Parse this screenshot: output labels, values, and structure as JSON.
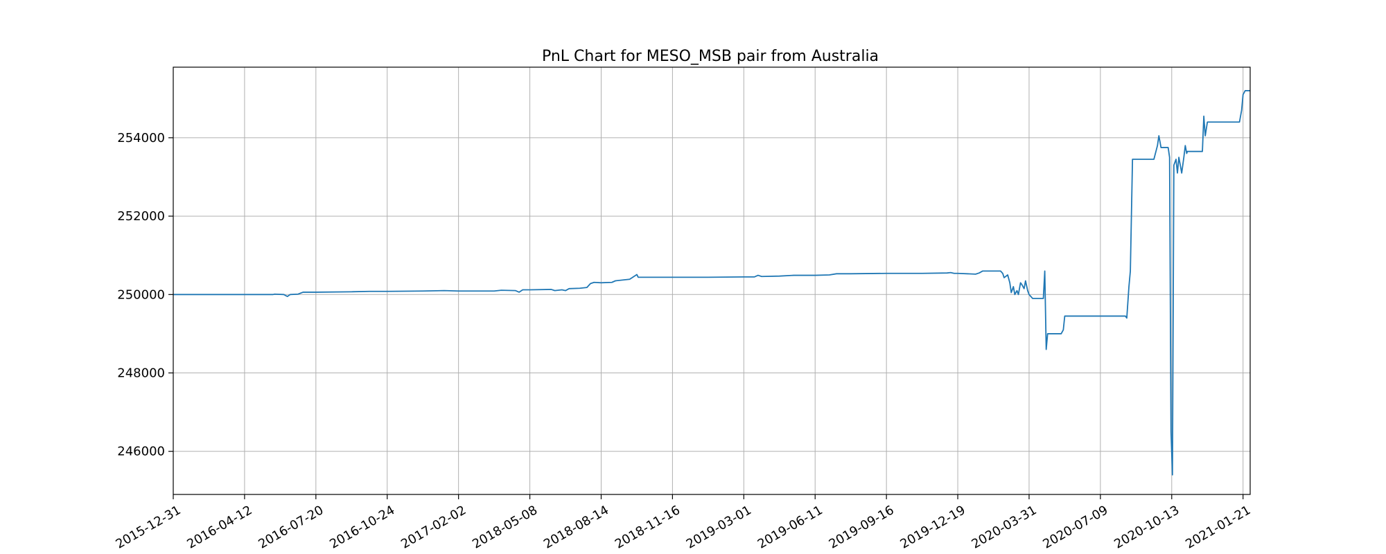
{
  "chart_data": {
    "type": "line",
    "title": "PnL Chart for MESO_MSB pair from Australia",
    "xlabel": "",
    "ylabel": "",
    "x_tick_labels": [
      "2015-12-31",
      "2016-04-12",
      "2016-07-20",
      "2016-10-24",
      "2017-02-02",
      "2018-05-08",
      "2018-08-14",
      "2018-11-16",
      "2019-03-01",
      "2019-06-11",
      "2019-09-16",
      "2019-12-19",
      "2020-03-31",
      "2020-07-09",
      "2020-10-13",
      "2021-01-21"
    ],
    "y_tick_labels": [
      "246000",
      "248000",
      "250000",
      "252000",
      "254000"
    ],
    "y_ticks": [
      246000,
      248000,
      250000,
      252000,
      254000
    ],
    "ylim": [
      244900,
      255800
    ],
    "x_range_positions": [
      0,
      15.1
    ],
    "grid": true,
    "line_color": "#1f77b4",
    "series": [
      {
        "points": [
          [
            0.0,
            250000
          ],
          [
            1.0,
            250000
          ],
          [
            1.4,
            250000
          ],
          [
            1.42,
            250010
          ],
          [
            1.55,
            250000
          ],
          [
            1.6,
            249950
          ],
          [
            1.64,
            250000
          ],
          [
            1.75,
            250010
          ],
          [
            1.82,
            250060
          ],
          [
            2.0,
            250060
          ],
          [
            2.5,
            250070
          ],
          [
            2.75,
            250080
          ],
          [
            3.0,
            250080
          ],
          [
            3.5,
            250090
          ],
          [
            3.8,
            250100
          ],
          [
            4.0,
            250090
          ],
          [
            4.5,
            250090
          ],
          [
            4.6,
            250110
          ],
          [
            4.8,
            250100
          ],
          [
            4.85,
            250060
          ],
          [
            4.9,
            250120
          ],
          [
            5.0,
            250120
          ],
          [
            5.3,
            250130
          ],
          [
            5.35,
            250100
          ],
          [
            5.45,
            250120
          ],
          [
            5.5,
            250100
          ],
          [
            5.55,
            250150
          ],
          [
            5.7,
            250160
          ],
          [
            5.8,
            250180
          ],
          [
            5.85,
            250280
          ],
          [
            5.9,
            250310
          ],
          [
            6.0,
            250300
          ],
          [
            6.15,
            250310
          ],
          [
            6.2,
            250350
          ],
          [
            6.4,
            250390
          ],
          [
            6.45,
            250450
          ],
          [
            6.5,
            250510
          ],
          [
            6.52,
            250440
          ],
          [
            7.0,
            250440
          ],
          [
            7.5,
            250440
          ],
          [
            8.0,
            250450
          ],
          [
            8.15,
            250450
          ],
          [
            8.2,
            250490
          ],
          [
            8.25,
            250460
          ],
          [
            8.5,
            250470
          ],
          [
            8.7,
            250490
          ],
          [
            9.0,
            250490
          ],
          [
            9.2,
            250500
          ],
          [
            9.3,
            250530
          ],
          [
            9.5,
            250530
          ],
          [
            10.0,
            250540
          ],
          [
            10.5,
            250540
          ],
          [
            10.85,
            250550
          ],
          [
            10.9,
            250560
          ],
          [
            10.95,
            250540
          ],
          [
            11.0,
            250540
          ],
          [
            11.25,
            250520
          ],
          [
            11.3,
            250550
          ],
          [
            11.35,
            250600
          ],
          [
            11.6,
            250600
          ],
          [
            11.63,
            250540
          ],
          [
            11.65,
            250430
          ],
          [
            11.7,
            250500
          ],
          [
            11.73,
            250300
          ],
          [
            11.75,
            250050
          ],
          [
            11.78,
            250200
          ],
          [
            11.8,
            250000
          ],
          [
            11.83,
            250100
          ],
          [
            11.85,
            250000
          ],
          [
            11.88,
            250300
          ],
          [
            11.9,
            250250
          ],
          [
            11.93,
            250150
          ],
          [
            11.95,
            250350
          ],
          [
            11.98,
            250100
          ],
          [
            12.0,
            250000
          ],
          [
            12.05,
            249900
          ],
          [
            12.2,
            249900
          ],
          [
            12.22,
            250600
          ],
          [
            12.24,
            248600
          ],
          [
            12.26,
            249000
          ],
          [
            12.45,
            249000
          ],
          [
            12.48,
            249100
          ],
          [
            12.5,
            249450
          ],
          [
            13.0,
            249450
          ],
          [
            13.35,
            249450
          ],
          [
            13.37,
            249400
          ],
          [
            13.4,
            250200
          ],
          [
            13.42,
            250600
          ],
          [
            13.45,
            253450
          ],
          [
            13.5,
            253450
          ],
          [
            13.75,
            253450
          ],
          [
            13.8,
            253800
          ],
          [
            13.82,
            254050
          ],
          [
            13.85,
            253750
          ],
          [
            13.95,
            253750
          ],
          [
            13.97,
            253500
          ],
          [
            13.99,
            246500
          ],
          [
            14.01,
            245400
          ],
          [
            14.03,
            253300
          ],
          [
            14.06,
            253450
          ],
          [
            14.08,
            253100
          ],
          [
            14.1,
            253500
          ],
          [
            14.12,
            253300
          ],
          [
            14.14,
            253100
          ],
          [
            14.17,
            253500
          ],
          [
            14.19,
            253800
          ],
          [
            14.21,
            253600
          ],
          [
            14.22,
            253650
          ],
          [
            14.4,
            253650
          ],
          [
            14.43,
            253650
          ],
          [
            14.45,
            254550
          ],
          [
            14.47,
            254050
          ],
          [
            14.5,
            254400
          ],
          [
            14.6,
            254400
          ],
          [
            14.9,
            254400
          ],
          [
            14.95,
            254400
          ],
          [
            14.98,
            254700
          ],
          [
            15.0,
            255100
          ],
          [
            15.03,
            255200
          ],
          [
            15.1,
            255200
          ]
        ]
      }
    ]
  }
}
